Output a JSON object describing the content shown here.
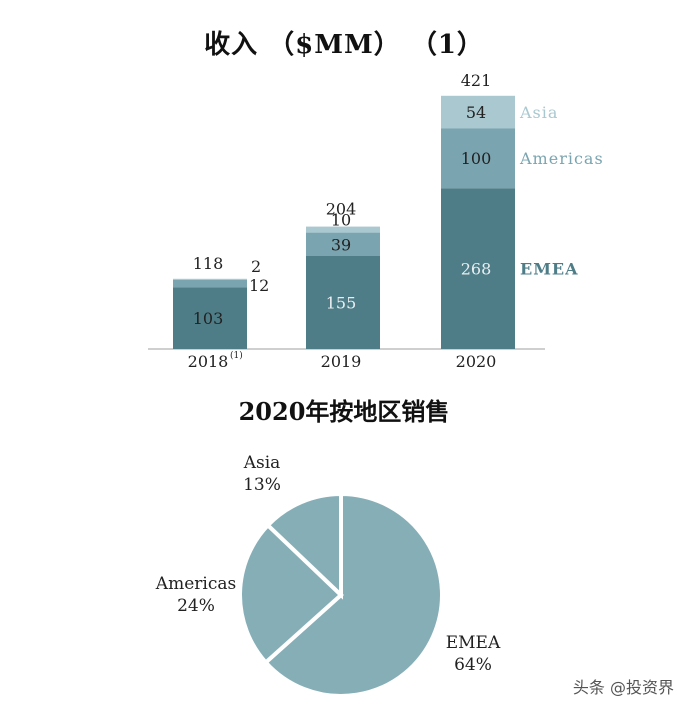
{
  "bar_title": "收入 （$MM） （1）",
  "pie_title": "2020年按地区销售",
  "watermark": "头条 @投资界",
  "colors": {
    "emea": "#4e7d88",
    "americas": "#7aa5b0",
    "asia": "#a9c8d0",
    "pie_fill": "#86aeb7",
    "axis": "#cfcfcf"
  },
  "chart_data": [
    {
      "type": "bar",
      "stacked": true,
      "title": "收入 （$MM） （1）",
      "categories": [
        "2018",
        "2019",
        "2020"
      ],
      "category_footnotes": [
        "(1)",
        "",
        ""
      ],
      "series": [
        {
          "name": "EMEA",
          "values": [
            103,
            155,
            268
          ]
        },
        {
          "name": "Americas",
          "values": [
            12,
            39,
            100
          ]
        },
        {
          "name": "Asia",
          "values": [
            2,
            10,
            54
          ]
        }
      ],
      "totals": [
        118,
        204,
        421
      ],
      "legend": "right"
    },
    {
      "type": "pie",
      "title": "2020年按地区销售",
      "slices": [
        {
          "name": "EMEA",
          "value": 64,
          "label": "64%"
        },
        {
          "name": "Americas",
          "value": 24,
          "label": "24%"
        },
        {
          "name": "Asia",
          "value": 13,
          "label": "13%"
        }
      ]
    }
  ]
}
